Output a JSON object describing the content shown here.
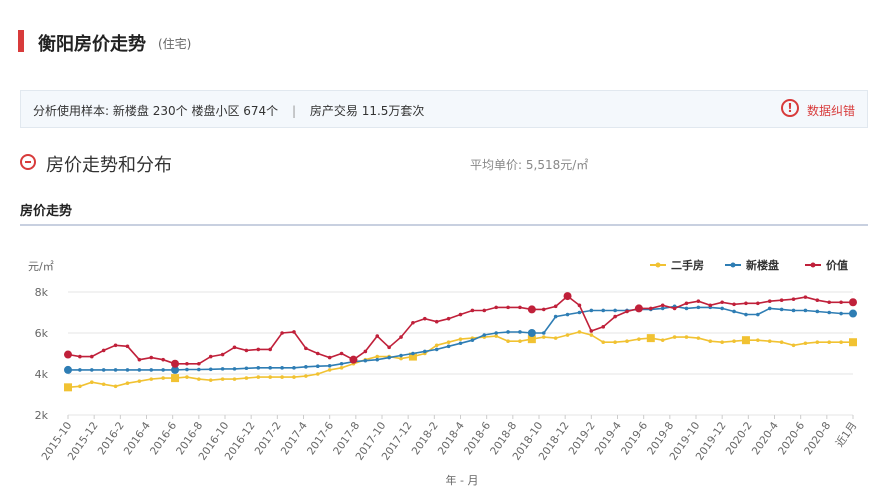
{
  "header": {
    "title": "衡阳房价走势",
    "subtitle": "(住宅)"
  },
  "sample": {
    "label": "分析使用样本:",
    "new_homes": "新楼盘 230个",
    "communities": "楼盘小区 674个",
    "transactions": "房产交易 11.5万套次",
    "separator": "|"
  },
  "error_report": {
    "icon": "exclamation-circle-icon",
    "label": "数据纠错"
  },
  "section": {
    "title": "房价走势和分布",
    "avg_label": "平均单价:",
    "avg_value": "5,518元/㎡"
  },
  "trend": {
    "label": "房价走势"
  },
  "chart_data": {
    "type": "line",
    "ylabel": "元/㎡",
    "xlabel": "年 - 月",
    "ylim": [
      2000,
      8000
    ],
    "yticks": [
      "2k",
      "4k",
      "6k",
      "8k"
    ],
    "x_tick_labels": [
      "2015-10",
      "2015-12",
      "2016-2",
      "2016-4",
      "2016-6",
      "2016-8",
      "2016-10",
      "2016-12",
      "2017-2",
      "2017-4",
      "2017-6",
      "2017-8",
      "2017-10",
      "2017-12",
      "2018-2",
      "2018-4",
      "2018-6",
      "2018-8",
      "2018-10",
      "2018-12",
      "2019-2",
      "2019-4",
      "2019-6",
      "2019-8",
      "2019-10",
      "2019-12",
      "2020-2",
      "2020-4",
      "2020-6",
      "2020-8",
      "近1月"
    ],
    "legend_position": "top-right",
    "series": [
      {
        "name": "二手房",
        "color": "#f1c232",
        "values": [
          3350,
          3400,
          3600,
          3500,
          3400,
          3550,
          3650,
          3750,
          3800,
          3800,
          3850,
          3750,
          3700,
          3750,
          3750,
          3800,
          3850,
          3850,
          3850,
          3850,
          3900,
          4000,
          4200,
          4300,
          4500,
          4700,
          4850,
          4850,
          4750,
          4850,
          5000,
          5400,
          5550,
          5700,
          5750,
          5800,
          5850,
          5600,
          5600,
          5700,
          5800,
          5750,
          5900,
          6050,
          5900,
          5550,
          5550,
          5600,
          5700,
          5750,
          5650,
          5800,
          5800,
          5750,
          5600,
          5550,
          5600,
          5650,
          5650,
          5600,
          5550,
          5400,
          5500,
          5550,
          5550,
          5550,
          5550
        ]
      },
      {
        "name": "新楼盘",
        "color": "#2e7db4",
        "values": [
          4200,
          4200,
          4200,
          4200,
          4200,
          4200,
          4200,
          4200,
          4200,
          4200,
          4220,
          4220,
          4230,
          4250,
          4250,
          4280,
          4300,
          4300,
          4300,
          4300,
          4350,
          4380,
          4400,
          4500,
          4600,
          4650,
          4700,
          4800,
          4900,
          5000,
          5100,
          5200,
          5350,
          5500,
          5650,
          5900,
          6000,
          6050,
          6050,
          6000,
          6000,
          6800,
          6900,
          7000,
          7100,
          7100,
          7100,
          7100,
          7150,
          7150,
          7200,
          7300,
          7200,
          7250,
          7250,
          7200,
          7050,
          6900,
          6900,
          7200,
          7150,
          7100,
          7100,
          7050,
          7000,
          6950,
          6950
        ]
      },
      {
        "name": "价值",
        "color": "#c0203a",
        "values": [
          4950,
          4850,
          4850,
          5150,
          5400,
          5350,
          4700,
          4800,
          4700,
          4500,
          4500,
          4500,
          4850,
          4950,
          5300,
          5150,
          5200,
          5200,
          6000,
          6050,
          5250,
          5000,
          4800,
          5000,
          4700,
          5100,
          5850,
          5300,
          5800,
          6500,
          6700,
          6550,
          6700,
          6900,
          7100,
          7100,
          7250,
          7250,
          7250,
          7150,
          7150,
          7300,
          7800,
          7350,
          6100,
          6300,
          6800,
          7050,
          7200,
          7200,
          7350,
          7200,
          7450,
          7550,
          7350,
          7500,
          7400,
          7450,
          7450,
          7550,
          7600,
          7650,
          7750,
          7600,
          7500,
          7500,
          7500
        ]
      }
    ]
  }
}
